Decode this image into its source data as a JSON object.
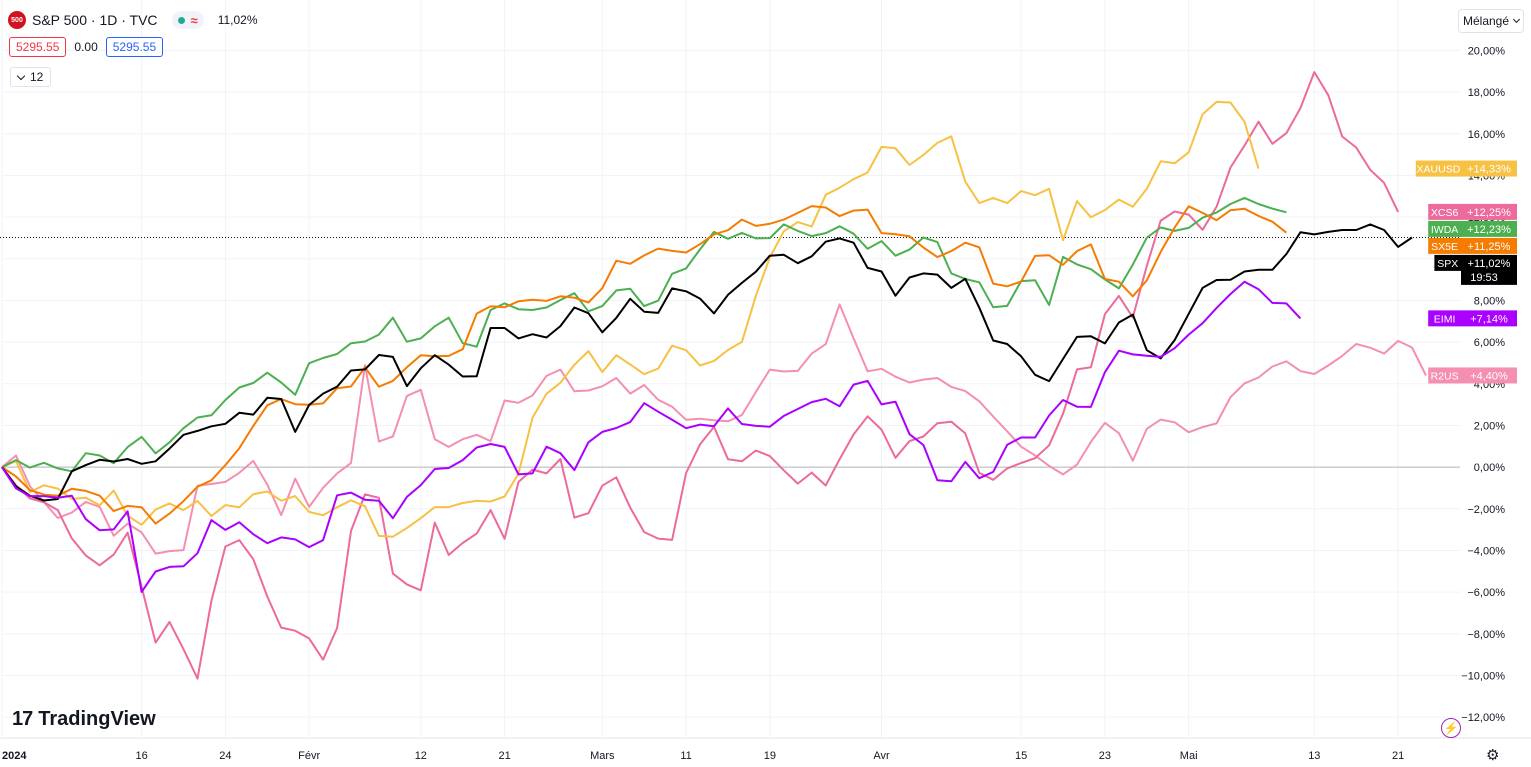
{
  "header": {
    "symbol_logo": "500",
    "title": "S&P 500 · 1D · TVC",
    "wave_icon": "≈",
    "change_pct": "11,02%",
    "price_bid": "5295.55",
    "spread": "0.00",
    "price_ask": "5295.55",
    "collapse_count": "12",
    "scale_mode_label": "Mélangé",
    "brand_label": "TradingView",
    "brand_mark": "17"
  },
  "icons": {
    "wave": "wave-icon",
    "chevron": "chevron-down-icon",
    "bolt": "lightning-icon",
    "settings": "gear-icon"
  },
  "colors": {
    "grid": "#f0f3fa",
    "axis_text": "#131722"
  },
  "chart_data": {
    "type": "line",
    "ylim": [
      -13,
      20.5
    ],
    "y_ticks": [
      20,
      18,
      16,
      14,
      12,
      10,
      8,
      6,
      4,
      2,
      0,
      -2,
      -4,
      -6,
      -8,
      -10,
      -12
    ],
    "y_tick_labels": [
      "20,00%",
      "18,00%",
      "16,00%",
      "14,00%",
      "12,00%",
      "10,00%",
      "8,00%",
      "6,00%",
      "4,00%",
      "2,00%",
      "0,00%",
      "−2,00%",
      "−4,00%",
      "−6,00%",
      "−8,00%",
      "−10,00%",
      "−12,00%"
    ],
    "x_ticks": [
      {
        "label": "2024",
        "i": 0
      },
      {
        "label": "16",
        "i": 10
      },
      {
        "label": "24",
        "i": 16
      },
      {
        "label": "Févr",
        "i": 22
      },
      {
        "label": "12",
        "i": 30
      },
      {
        "label": "21",
        "i": 36
      },
      {
        "label": "Mars",
        "i": 43
      },
      {
        "label": "11",
        "i": 49
      },
      {
        "label": "19",
        "i": 55
      },
      {
        "label": "Avr",
        "i": 63
      },
      {
        "label": "15",
        "i": 73
      },
      {
        "label": "23",
        "i": 79
      },
      {
        "label": "Mai",
        "i": 85
      },
      {
        "label": "13",
        "i": 94
      },
      {
        "label": "21",
        "i": 100
      }
    ],
    "n_points": 103,
    "current_value_line": 11.02,
    "series": [
      {
        "name": "R2US",
        "color": "#f48fb1",
        "last_label": "+4,40%",
        "values": [
          0,
          0.56,
          -0.91,
          -1.68,
          -2.44,
          -2.18,
          -1.67,
          -1.91,
          -3.29,
          -2.71,
          -3.13,
          -4.15,
          -4.03,
          -3.98,
          -0.89,
          -0.81,
          -0.71,
          -0.27,
          0.3,
          -0.84,
          -2.3,
          -0.55,
          -1.91,
          -0.99,
          -0.3,
          0.2,
          4.89,
          1.23,
          1.47,
          3.42,
          3.71,
          1.34,
          0.97,
          1.34,
          1.55,
          1.25,
          3.2,
          3.09,
          3.44,
          4.38,
          4.68,
          3.64,
          3.68,
          3.88,
          4.28,
          3.53,
          3.94,
          3.23,
          2.9,
          2.27,
          2.32,
          2.25,
          2.2,
          2.5,
          3.61,
          4.68,
          4.59,
          4.62,
          5.45,
          5.9,
          7.81,
          6.18,
          4.6,
          4.72,
          4.34,
          4.06,
          4.2,
          4.28,
          3.85,
          3.65,
          3.16,
          2.43,
          1.72,
          0.98,
          0.56,
          0.06,
          -0.35,
          0.12,
          1.21,
          2.13,
          1.63,
          0.31,
          1.84,
          2.28,
          2.15,
          1.67,
          1.92,
          2.1,
          3.36,
          4.02,
          4.3,
          4.83,
          5.08,
          4.61,
          4.47,
          4.88,
          5.34,
          5.91,
          5.73,
          5.45,
          6.06,
          5.74,
          4.4
        ]
      },
      {
        "name": "XCS6",
        "color": "#ec6a9c",
        "last_label": "+12,25%",
        "values": [
          0,
          -0.87,
          -1.5,
          -1.69,
          -2.06,
          -3.42,
          -4.24,
          -4.71,
          -4.2,
          -3.14,
          -5.74,
          -8.42,
          -7.43,
          -8.74,
          -10.15,
          -6.42,
          -3.81,
          -3.5,
          -4.42,
          -6.21,
          -7.7,
          -7.85,
          -8.22,
          -9.24,
          -7.72,
          -3.06,
          -1.31,
          -1.47,
          -5.11,
          -5.63,
          -5.91,
          -2.66,
          -4.21,
          -3.64,
          -3.19,
          -2.06,
          -3.44,
          -0.71,
          -0.12,
          -0.3,
          0.39,
          -2.42,
          -2.21,
          -0.89,
          -0.49,
          -1.94,
          -3.12,
          -3.43,
          -3.49,
          -0.28,
          1.09,
          1.93,
          0.38,
          0.28,
          0.8,
          0.53,
          -0.15,
          -0.79,
          -0.26,
          -0.88,
          0.38,
          1.57,
          2.44,
          1.8,
          0.45,
          1.25,
          1.47,
          2.11,
          2.18,
          1.62,
          -0.27,
          -0.61,
          -0.06,
          0.2,
          0.43,
          1.05,
          2.56,
          4.69,
          4.79,
          7.34,
          8.22,
          7.18,
          9.66,
          11.83,
          12.27,
          12.12,
          11.39,
          12.5,
          14.38,
          15.43,
          16.58,
          15.52,
          16.03,
          17.23,
          18.96,
          17.85,
          15.87,
          15.34,
          14.27,
          13.64,
          12.25
        ]
      },
      {
        "name": "XAUUSD",
        "color": "#f7c143",
        "last_label": "+14,33%",
        "values": [
          0,
          0.29,
          -1.2,
          -0.87,
          -1.03,
          -1.53,
          -1.47,
          -1.83,
          -1.12,
          -2.33,
          -2.77,
          -2.04,
          -1.74,
          -2.06,
          -1.62,
          -2.35,
          -1.82,
          -1.93,
          -1.3,
          -1.17,
          -1.61,
          -1.39,
          -2.15,
          -2.31,
          -1.93,
          -1.59,
          -1.88,
          -3.3,
          -3.34,
          -2.92,
          -2.45,
          -1.92,
          -1.92,
          -1.72,
          -1.62,
          -1.65,
          -1.41,
          -0.31,
          2.37,
          3.52,
          4.05,
          4.91,
          5.57,
          4.56,
          5.37,
          4.93,
          4.46,
          4.73,
          5.83,
          5.61,
          4.88,
          5.1,
          5.62,
          6.01,
          8.23,
          10.06,
          11.32,
          11.76,
          11.55,
          13.07,
          13.41,
          13.82,
          14.14,
          15.37,
          15.3,
          14.5,
          14.98,
          15.56,
          15.88,
          13.7,
          12.67,
          12.92,
          12.67,
          13.25,
          13.05,
          13.36,
          10.89,
          12.77,
          11.99,
          12.34,
          12.84,
          12.5,
          13.36,
          14.68,
          14.58,
          15.11,
          16.94,
          17.53,
          17.5,
          16.58,
          14.33
        ]
      },
      {
        "name": "IWDA",
        "color": "#4caf50",
        "last_label": "+12,23%",
        "values": [
          0,
          0.34,
          -0.02,
          0.21,
          -0.06,
          -0.2,
          0.67,
          0.56,
          0.19,
          0.96,
          1.45,
          0.66,
          1.19,
          1.87,
          2.38,
          2.49,
          3.22,
          3.82,
          4.04,
          4.53,
          4.06,
          3.47,
          4.99,
          5.24,
          5.43,
          5.95,
          6.03,
          6.36,
          7.17,
          6.02,
          6.18,
          6.76,
          7.17,
          5.95,
          5.78,
          7.54,
          7.86,
          7.58,
          7.54,
          7.66,
          8.02,
          8.35,
          7.48,
          7.73,
          8.48,
          8.56,
          7.73,
          7.99,
          9.28,
          9.54,
          10.45,
          11.29,
          10.96,
          11.24,
          10.98,
          10.99,
          11.65,
          11.34,
          11.09,
          11.23,
          11.56,
          11.2,
          10.48,
          10.85,
          10.15,
          10.44,
          11.02,
          10.8,
          9.3,
          9.03,
          8.87,
          7.67,
          7.74,
          8.93,
          8.97,
          7.78,
          10.09,
          9.73,
          9.5,
          9.01,
          8.58,
          9.72,
          11.01,
          11.5,
          11.34,
          11.48,
          11.97,
          12.22,
          12.63,
          12.92,
          12.63,
          12.41,
          12.23
        ]
      },
      {
        "name": "SX5E",
        "color": "#f57c00",
        "last_label": "+11,25%",
        "values": [
          0,
          -0.45,
          -1.1,
          -1.32,
          -1.37,
          -1.04,
          -1.14,
          -1.37,
          -2.11,
          -1.86,
          -1.93,
          -2.71,
          -2.23,
          -1.63,
          -0.94,
          -0.63,
          0.1,
          0.91,
          1.98,
          2.97,
          3.27,
          3.02,
          2.99,
          3.06,
          3.79,
          3.87,
          4.79,
          3.86,
          4.14,
          4.79,
          5.37,
          5.32,
          5.34,
          5.66,
          7.37,
          7.72,
          7.67,
          7.96,
          8.03,
          7.98,
          8.2,
          8.13,
          7.9,
          8.59,
          9.91,
          9.76,
          10.16,
          10.49,
          10.38,
          10.3,
          10.7,
          11.17,
          11.37,
          11.88,
          11.58,
          11.68,
          11.88,
          12.2,
          12.53,
          12.46,
          12.05,
          12.31,
          12.36,
          11.23,
          11.18,
          11.08,
          10.54,
          10.08,
          10.37,
          10.77,
          10.55,
          8.81,
          8.68,
          8.91,
          10.14,
          10.17,
          9.71,
          10.37,
          10.69,
          9.03,
          8.9,
          8.2,
          8.96,
          10.33,
          11.5,
          12.52,
          12.2,
          11.85,
          12.33,
          12.4,
          12.06,
          11.78,
          11.25
        ]
      },
      {
        "name": "SPX",
        "color": "#000000",
        "last_label": "+11,02%",
        "countdown": "19:53",
        "values": [
          0,
          -0.92,
          -1.37,
          -1.6,
          -1.53,
          -0.2,
          0.1,
          0.35,
          0.27,
          0.39,
          0.16,
          0.28,
          0.89,
          1.55,
          1.74,
          1.96,
          2.08,
          2.61,
          2.52,
          3.33,
          3.27,
          1.69,
          2.98,
          3.53,
          3.86,
          4.64,
          4.69,
          5.38,
          5.29,
          3.89,
          4.75,
          5.37,
          4.92,
          4.35,
          4.36,
          6.68,
          6.68,
          6.18,
          6.38,
          6.22,
          6.77,
          7.66,
          7.39,
          6.47,
          7.16,
          8.08,
          7.46,
          7.4,
          8.58,
          8.44,
          8.09,
          7.38,
          8.27,
          8.84,
          9.38,
          10.15,
          10.19,
          9.79,
          10.12,
          10.82,
          10.98,
          10.77,
          9.56,
          9.39,
          8.23,
          9.1,
          9.3,
          9.24,
          8.6,
          9.04,
          7.65,
          6.08,
          5.91,
          5.32,
          4.43,
          4.13,
          5.19,
          6.25,
          6.28,
          5.94,
          6.94,
          7.32,
          5.61,
          5.22,
          6.1,
          7.36,
          8.6,
          8.98,
          8.99,
          9.39,
          9.47,
          9.47,
          10.23,
          11.27,
          11.17,
          11.29,
          11.38,
          11.38,
          11.65,
          11.38,
          10.57,
          11.02
        ]
      },
      {
        "name": "EIMI",
        "color": "#aa00ff",
        "last_label": "+7,14%",
        "values": [
          0,
          -1.02,
          -1.39,
          -1.39,
          -1.47,
          -1.37,
          -2.5,
          -3.03,
          -2.99,
          -2.12,
          -5.99,
          -5.01,
          -4.79,
          -4.76,
          -4.13,
          -2.54,
          -3.01,
          -2.65,
          -3.22,
          -3.65,
          -3.37,
          -3.47,
          -3.84,
          -3.5,
          -1.35,
          -1.22,
          -1.57,
          -1.61,
          -2.45,
          -1.43,
          -0.86,
          -0.09,
          -0.04,
          0.34,
          0.94,
          1.11,
          0.97,
          -0.35,
          -0.3,
          0.98,
          0.67,
          -0.14,
          1.19,
          1.69,
          1.88,
          2.16,
          3.07,
          2.66,
          2.27,
          1.87,
          2.04,
          1.96,
          2.82,
          2.07,
          1.98,
          1.94,
          2.46,
          2.79,
          3.12,
          3.28,
          2.92,
          3.96,
          4.14,
          3.01,
          3.14,
          1.58,
          1.06,
          -0.63,
          -0.68,
          0.25,
          -0.53,
          -0.23,
          1.07,
          1.42,
          1.42,
          2.48,
          3.22,
          2.9,
          2.89,
          4.55,
          5.59,
          5.41,
          5.35,
          5.29,
          5.71,
          6.36,
          6.91,
          7.64,
          8.31,
          8.9,
          8.54,
          7.88,
          7.86,
          7.14
        ]
      }
    ]
  }
}
